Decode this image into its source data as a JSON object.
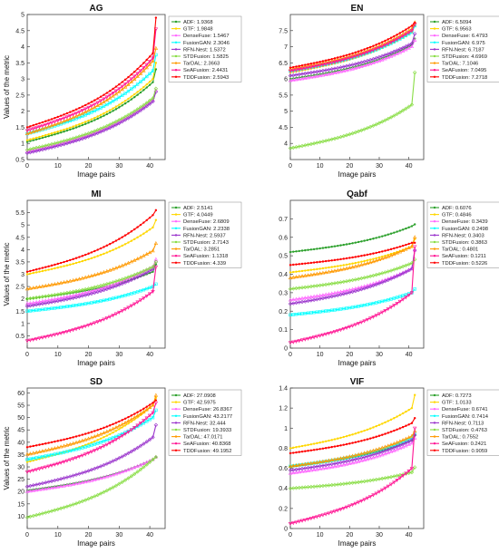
{
  "chart_data": [
    {
      "type": "line",
      "title": "AG",
      "xlabel": "Image pairs",
      "ylabel": "Values of the metric",
      "xlim": [
        0,
        45
      ],
      "ylim": [
        0.5,
        5
      ],
      "xticks": [
        0,
        10,
        20,
        30,
        40
      ],
      "yticks": [
        0.5,
        1,
        1.5,
        2,
        2.5,
        3,
        3.5,
        4,
        4.5,
        5
      ],
      "grid": false,
      "legend": "top-right",
      "series": [
        {
          "name": "ADF: 1.9368",
          "color": "#2ca02c",
          "start": 1.05,
          "end": 2.9,
          "end_jump": 0.4
        },
        {
          "name": "GTF: 1.9848",
          "color": "#ffd700",
          "start": 1.1,
          "end": 3.0,
          "end_jump": 0.5
        },
        {
          "name": "DenseFuse: 1.5467",
          "color": "#ff66ff",
          "start": 0.75,
          "end": 2.35,
          "end_jump": 0.3
        },
        {
          "name": "FusionGAN: 2.3046",
          "color": "#00ffff",
          "start": 1.3,
          "end": 3.25,
          "end_jump": 0.5
        },
        {
          "name": "RFN-Nest: 1.5372",
          "color": "#9933cc",
          "start": 0.7,
          "end": 2.3,
          "end_jump": 0.3
        },
        {
          "name": "STDFusion: 1.5825",
          "color": "#88dd44",
          "start": 0.8,
          "end": 2.4,
          "end_jump": 0.3
        },
        {
          "name": "TarDAL: 2.3663",
          "color": "#ff9900",
          "start": 1.3,
          "end": 3.55,
          "end_jump": 0.4
        },
        {
          "name": "SeAFusion: 2.4431",
          "color": "#ff1493",
          "start": 1.4,
          "end": 3.65,
          "end_jump": 0.9
        },
        {
          "name": "TDDFusion: 2.5943",
          "color": "#ff0000",
          "start": 1.5,
          "end": 3.8,
          "end_jump": 1.1
        }
      ]
    },
    {
      "type": "line",
      "title": "EN",
      "xlabel": "Image pairs",
      "ylabel": "",
      "xlim": [
        0,
        45
      ],
      "ylim": [
        3.5,
        8
      ],
      "xticks": [
        0,
        10,
        20,
        30,
        40
      ],
      "yticks": [
        4,
        4.5,
        5,
        5.5,
        6,
        6.5,
        7,
        7.5
      ],
      "grid": false,
      "legend": "top-right",
      "series": [
        {
          "name": "ADF: 6.5094",
          "color": "#2ca02c",
          "start": 6.0,
          "end": 7.05,
          "end_jump": 0.2
        },
        {
          "name": "GTF: 6.9563",
          "color": "#ffd700",
          "start": 6.2,
          "end": 7.45,
          "end_jump": 0.2
        },
        {
          "name": "DenseFuse: 6.4793",
          "color": "#ff66ff",
          "start": 5.95,
          "end": 7.0,
          "end_jump": 0.2
        },
        {
          "name": "FusionGAN: 6.975",
          "color": "#00ffff",
          "start": 6.25,
          "end": 7.45,
          "end_jump": 0.2
        },
        {
          "name": "RFN-Nest: 6.7187",
          "color": "#9933cc",
          "start": 6.1,
          "end": 7.1,
          "end_jump": 0.3
        },
        {
          "name": "STDFusion: 4.6969",
          "color": "#88dd44",
          "start": 3.85,
          "end": 5.2,
          "end_jump": 1.0
        },
        {
          "name": "TarDAL: 7.1046",
          "color": "#ff9900",
          "start": 6.3,
          "end": 7.55,
          "end_jump": 0.2
        },
        {
          "name": "SeAFusion: 7.0495",
          "color": "#ff1493",
          "start": 6.25,
          "end": 7.5,
          "end_jump": 0.2
        },
        {
          "name": "TDDFusion: 7.2718",
          "color": "#ff0000",
          "start": 6.35,
          "end": 7.65,
          "end_jump": 0.1
        }
      ]
    },
    {
      "type": "line",
      "title": "MI",
      "xlabel": "Image pairs",
      "ylabel": "Values of the metric",
      "xlim": [
        0,
        45
      ],
      "ylim": [
        0,
        6
      ],
      "xticks": [
        0,
        10,
        20,
        30,
        40
      ],
      "yticks": [
        0.5,
        1,
        1.5,
        2,
        2.5,
        3,
        3.5,
        4,
        4.5,
        5,
        5.5
      ],
      "grid": false,
      "legend": "top-right",
      "series": [
        {
          "name": "ADF: 2.5141",
          "color": "#2ca02c",
          "start": 2.0,
          "end": 3.1,
          "end_jump": 0.3
        },
        {
          "name": "GTF: 4.0449",
          "color": "#ffd700",
          "start": 3.0,
          "end": 4.9,
          "end_jump": 0.3
        },
        {
          "name": "DenseFuse: 2.6809",
          "color": "#ff66ff",
          "start": 1.8,
          "end": 3.3,
          "end_jump": 0.3
        },
        {
          "name": "FusionGAN: 2.2338",
          "color": "#00ffff",
          "start": 1.5,
          "end": 2.5,
          "end_jump": 0.1
        },
        {
          "name": "RFN-Nest: 2.5937",
          "color": "#9933cc",
          "start": 1.7,
          "end": 3.2,
          "end_jump": 0.3
        },
        {
          "name": "STDFusion: 2.7143",
          "color": "#88dd44",
          "start": 2.0,
          "end": 3.3,
          "end_jump": 0.2
        },
        {
          "name": "TarDAL: 3.2851",
          "color": "#ff9900",
          "start": 2.4,
          "end": 3.95,
          "end_jump": 0.3
        },
        {
          "name": "SeAFusion: 1.1318",
          "color": "#ff1493",
          "start": 0.3,
          "end": 2.3,
          "end_jump": 1.0
        },
        {
          "name": "TDDFusion: 4.339",
          "color": "#ff0000",
          "start": 3.1,
          "end": 5.4,
          "end_jump": 0.2
        }
      ]
    },
    {
      "type": "line",
      "title": "Qabf",
      "xlabel": "Image pairs",
      "ylabel": "",
      "xlim": [
        0,
        45
      ],
      "ylim": [
        0,
        0.8
      ],
      "xticks": [
        0,
        10,
        20,
        30,
        40
      ],
      "yticks": [
        0,
        0.1,
        0.2,
        0.3,
        0.4,
        0.5,
        0.6,
        0.7
      ],
      "grid": false,
      "legend": "top-right",
      "series": [
        {
          "name": "ADF: 0.6076",
          "color": "#2ca02c",
          "start": 0.52,
          "end": 0.66,
          "end_jump": 0.01
        },
        {
          "name": "GTF: 0.4846",
          "color": "#ffd700",
          "start": 0.41,
          "end": 0.55,
          "end_jump": 0.04
        },
        {
          "name": "DenseFuse: 0.3439",
          "color": "#ff66ff",
          "start": 0.26,
          "end": 0.43,
          "end_jump": 0.1
        },
        {
          "name": "FusionGAN: 0.2498",
          "color": "#00ffff",
          "start": 0.18,
          "end": 0.3,
          "end_jump": 0.02
        },
        {
          "name": "RFN-Nest: 0.3403",
          "color": "#9933cc",
          "start": 0.24,
          "end": 0.43,
          "end_jump": 0.1
        },
        {
          "name": "STDFusion: 0.3863",
          "color": "#88dd44",
          "start": 0.32,
          "end": 0.46,
          "end_jump": 0.02
        },
        {
          "name": "TarDAL: 0.4801",
          "color": "#ff9900",
          "start": 0.38,
          "end": 0.55,
          "end_jump": 0.05
        },
        {
          "name": "SeAFusion: 0.1211",
          "color": "#ff1493",
          "start": 0.03,
          "end": 0.3,
          "end_jump": 0.25
        },
        {
          "name": "TDDFusion: 0.5226",
          "color": "#ff0000",
          "start": 0.45,
          "end": 0.57,
          "end_jump": 0.0
        }
      ]
    },
    {
      "type": "line",
      "title": "SD",
      "xlabel": "Image pairs",
      "ylabel": "Values of the metric",
      "xlim": [
        0,
        45
      ],
      "ylim": [
        5,
        62
      ],
      "xticks": [
        0,
        10,
        20,
        30,
        40
      ],
      "yticks": [
        10,
        15,
        20,
        25,
        30,
        35,
        40,
        45,
        50,
        55,
        60
      ],
      "grid": false,
      "legend": "top-right",
      "series": [
        {
          "name": "ADF: 27.0908",
          "color": "#2ca02c",
          "start": 20.5,
          "end": 33.0,
          "end_jump": 1.0
        },
        {
          "name": "GTF: 42.5975",
          "color": "#ffd700",
          "start": 32.0,
          "end": 55.0,
          "end_jump": 3.0
        },
        {
          "name": "DenseFuse: 26.8367",
          "color": "#ff66ff",
          "start": 20.0,
          "end": 33.0,
          "end_jump": 1.0
        },
        {
          "name": "FusionGAN: 43.2177",
          "color": "#00ffff",
          "start": 33.0,
          "end": 50.0,
          "end_jump": 3.0
        },
        {
          "name": "RFN-Nest: 32.444",
          "color": "#9933cc",
          "start": 22.0,
          "end": 42.0,
          "end_jump": 5.0
        },
        {
          "name": "STDFusion: 19.3933",
          "color": "#88dd44",
          "start": 9.5,
          "end": 33.0,
          "end_jump": 1.0
        },
        {
          "name": "TarDAL: 47.0171",
          "color": "#ff9900",
          "start": 35.0,
          "end": 55.0,
          "end_jump": 4.0
        },
        {
          "name": "SeAFusion: 40.8368",
          "color": "#ff1493",
          "start": 28.0,
          "end": 52.0,
          "end_jump": 4.0
        },
        {
          "name": "TDDFusion: 49.1952",
          "color": "#ff0000",
          "start": 38.0,
          "end": 56.0,
          "end_jump": 1.0
        }
      ]
    },
    {
      "type": "line",
      "title": "VIF",
      "xlabel": "Image pairs",
      "ylabel": "",
      "xlim": [
        0,
        45
      ],
      "ylim": [
        0,
        1.4
      ],
      "xticks": [
        0,
        10,
        20,
        30,
        40
      ],
      "yticks": [
        0,
        0.2,
        0.4,
        0.6,
        0.8,
        1,
        1.2,
        1.4
      ],
      "grid": false,
      "legend": "top-right",
      "series": [
        {
          "name": "ADF: 0.7273",
          "color": "#2ca02c",
          "start": 0.62,
          "end": 0.88,
          "end_jump": 0.05
        },
        {
          "name": "GTF: 1.0133",
          "color": "#ffd700",
          "start": 0.8,
          "end": 1.2,
          "end_jump": 0.13
        },
        {
          "name": "DenseFuse: 0.6741",
          "color": "#ff66ff",
          "start": 0.55,
          "end": 0.85,
          "end_jump": 0.05
        },
        {
          "name": "FusionGAN: 0.7414",
          "color": "#00ffff",
          "start": 0.62,
          "end": 0.9,
          "end_jump": 0.05
        },
        {
          "name": "RFN-Nest: 0.7113",
          "color": "#9933cc",
          "start": 0.58,
          "end": 0.88,
          "end_jump": 0.05
        },
        {
          "name": "STDFusion: 0.4763",
          "color": "#88dd44",
          "start": 0.4,
          "end": 0.56,
          "end_jump": 0.05
        },
        {
          "name": "TarDAL: 0.7552",
          "color": "#ff9900",
          "start": 0.62,
          "end": 0.92,
          "end_jump": 0.05
        },
        {
          "name": "SeAFusion: 0.2421",
          "color": "#ff1493",
          "start": 0.05,
          "end": 0.6,
          "end_jump": 0.4
        },
        {
          "name": "TDDFusion: 0.9059",
          "color": "#ff0000",
          "start": 0.75,
          "end": 1.05,
          "end_jump": 0.05
        }
      ]
    }
  ]
}
